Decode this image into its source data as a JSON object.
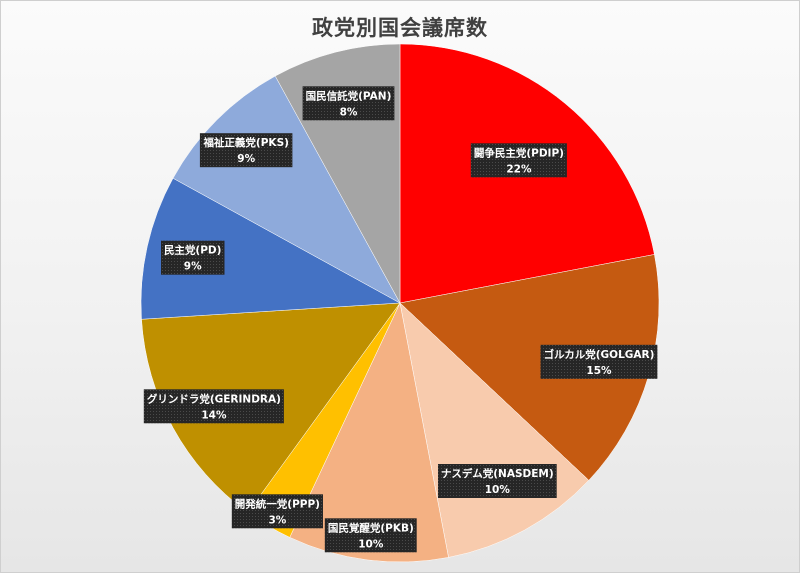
{
  "chart_data": {
    "type": "pie",
    "title": "政党別国会議席数",
    "categories": [
      "闘争民主党(PDIP)",
      "ゴルカル党(GOLGAR)",
      "ナスデム党(NASDEM)",
      "国民覚醒党(PKB)",
      "開発統一党(PPP)",
      "グリンドラ党(GERINDRA)",
      "民主党(PD)",
      "福祉正義党(PKS)",
      "国民信託党(PAN)"
    ],
    "values": [
      22,
      15,
      10,
      10,
      3,
      14,
      9,
      9,
      8
    ],
    "labels": [
      "22%",
      "15%",
      "10%",
      "10%",
      "3%",
      "14%",
      "9%",
      "9%",
      "8%"
    ],
    "colors": [
      "#ff0000",
      "#c55a11",
      "#f8cbad",
      "#f4b183",
      "#ffc000",
      "#bf9000",
      "#4472c4",
      "#8eaadb",
      "#a5a5a5"
    ],
    "start": "12 o'clock",
    "direction": "clockwise",
    "legend": "none"
  }
}
